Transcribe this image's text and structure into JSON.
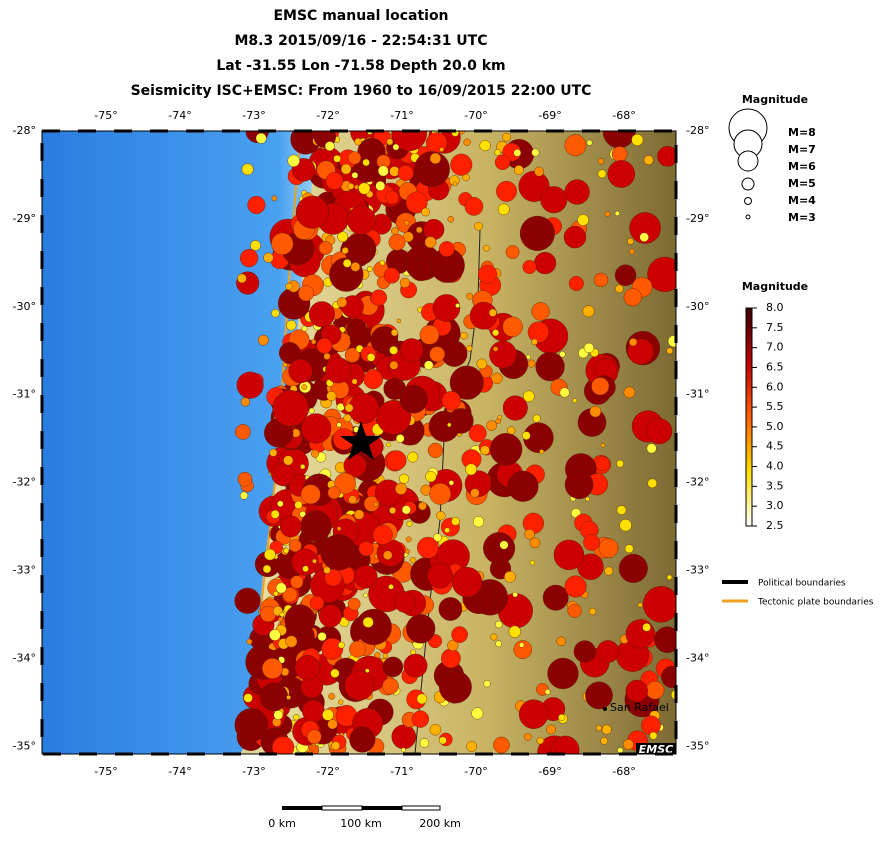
{
  "header": {
    "title_lines": [
      "EMSC manual location",
      "M8.3  2015/09/16 - 22:54:31 UTC",
      "Lat -31.55    Lon -71.58     Depth  20.0 km",
      "Seismicity ISC+EMSC: From 1960 to 16/09/2015 22:00 UTC"
    ]
  },
  "map": {
    "lon_labels": [
      "-75°",
      "-74°",
      "-73°",
      "-72°",
      "-71°",
      "-70°",
      "-69°",
      "-68°"
    ],
    "lat_labels": [
      "-28°",
      "-29°",
      "-30°",
      "-31°",
      "-32°",
      "-33°",
      "-34°",
      "-35°"
    ],
    "places": [
      "San Rafael"
    ],
    "credit": "EMSC"
  },
  "size_legend": {
    "title": "Magnitude",
    "labels": [
      "M=8",
      "M=7",
      "M=6",
      "M=5",
      "M=4",
      "M=3"
    ]
  },
  "color_legend": {
    "title": "Magnitude",
    "ticks": [
      "8.0",
      "7.5",
      "7.0",
      "6.5",
      "6.0",
      "5.5",
      "5.0",
      "4.5",
      "4.0",
      "3.5",
      "3.0",
      "2.5"
    ]
  },
  "line_legend": [
    "Political boundaries",
    "Tectonic plate boundaries"
  ],
  "scale_bar": [
    "0 km",
    "100 km",
    "200 km"
  ]
}
